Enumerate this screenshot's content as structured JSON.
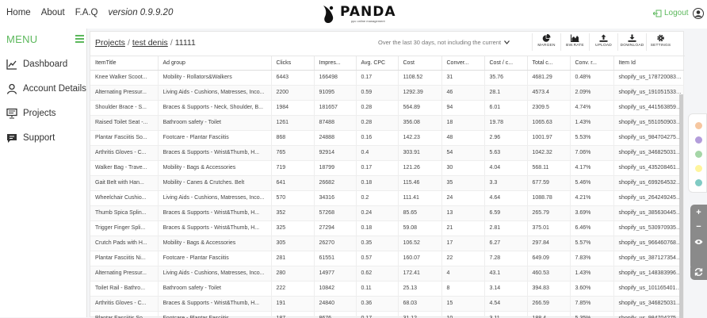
{
  "nav": {
    "home": "Home",
    "about": "About",
    "faq": "F.A.Q",
    "version": "version 0.9.9.20",
    "logout": "Logout"
  },
  "logo": {
    "word": "PANDA",
    "tagline": "ppc online management"
  },
  "sidebar": {
    "menu_label": "MENU",
    "items": [
      {
        "label": "Dashboard",
        "icon": "chart-line-icon"
      },
      {
        "label": "Account Details",
        "icon": "user-icon"
      },
      {
        "label": "Projects",
        "icon": "presentation-icon"
      },
      {
        "label": "Support",
        "icon": "chat-bubble-icon"
      }
    ]
  },
  "breadcrumb": {
    "projects": "Projects",
    "account": "test denis",
    "project_id": "11111"
  },
  "date_range": "Over the last 30 days, not including the current",
  "toolbar": [
    {
      "label": "MARGEN",
      "icon": "pie-chart-icon"
    },
    {
      "label": "BW.RATE",
      "icon": "area-chart-icon"
    },
    {
      "label": "UPLOAD",
      "icon": "upload-icon"
    },
    {
      "label": "DOWNLOAD",
      "icon": "download-icon"
    },
    {
      "label": "SETTINGS",
      "icon": "gear-icon"
    }
  ],
  "table": {
    "columns": [
      "ItemTitle",
      "Ad group",
      "Clicks",
      "Impres...",
      "Avg. CPC",
      "Cost",
      "Conver...",
      "Cost / c...",
      "Total c...",
      "Conv. r...",
      "Item Id"
    ],
    "rows": [
      [
        "Knee Walker Scoot...",
        "Mobility - Rollators&Walkers",
        "6443",
        "166498",
        "0.17",
        "1108.52",
        "31",
        "35.76",
        "4681.29",
        "0.48%",
        "shopify_us_1787200836_6"
      ],
      [
        "Alternating Pressur...",
        "Living Aids - Cushions, Matresses, Inco...",
        "2200",
        "91095",
        "0.59",
        "1292.39",
        "46",
        "28.1",
        "4573.4",
        "2.09%",
        "shopify_us_1910515332_66"
      ],
      [
        "Shoulder Brace - S...",
        "Braces & Supports - Neck, Shoulder, B...",
        "1984",
        "181657",
        "0.28",
        "564.89",
        "94",
        "6.01",
        "2309.5",
        "4.74%",
        "shopify_us_4415638596_14"
      ],
      [
        "Raised Toilet Seat -...",
        "Bathroom safety - Toilet",
        "1261",
        "87488",
        "0.28",
        "356.08",
        "18",
        "19.78",
        "1065.63",
        "1.43%",
        "shopify_us_551050903587"
      ],
      [
        "Plantar Fasciitis So...",
        "Footcare - Plantar Fasciitis",
        "868",
        "24888",
        "0.16",
        "142.23",
        "48",
        "2.96",
        "1001.97",
        "5.53%",
        "shopify_us_9847042756_34"
      ],
      [
        "Arthritis Gloves - C...",
        "Braces & Supports - Wrist&Thumb, H...",
        "765",
        "92914",
        "0.4",
        "303.91",
        "54",
        "5.63",
        "1042.32",
        "7.06%",
        "shopify_us_346825031684"
      ],
      [
        "Walker Bag - Trave...",
        "Mobility - Bags & Accessories",
        "719",
        "18799",
        "0.17",
        "121.26",
        "30",
        "4.04",
        "568.11",
        "4.17%",
        "shopify_us_4352084612_14"
      ],
      [
        "Gait Belt with Han...",
        "Mobility - Canes & Crutches. Belt",
        "641",
        "26682",
        "0.18",
        "115.46",
        "35",
        "3.3",
        "677.59",
        "5.46%",
        "shopify_us_69926453252_"
      ],
      [
        "Wheelchair Cushio...",
        "Living Aids - Cushions, Matresses, Inco...",
        "570",
        "34316",
        "0.2",
        "111.41",
        "24",
        "4.64",
        "1088.78",
        "4.21%",
        "shopify_us_264249245700"
      ],
      [
        "Thumb Spica Splin...",
        "Braces & Supports - Wrist&Thumb, H...",
        "352",
        "57268",
        "0.24",
        "85.65",
        "13",
        "6.59",
        "265.79",
        "3.69%",
        "shopify_us_3856304452_1"
      ],
      [
        "Trigger Finger Spli...",
        "Braces & Supports - Wrist&Thumb, H...",
        "325",
        "27294",
        "0.18",
        "59.08",
        "21",
        "2.81",
        "375.01",
        "6.46%",
        "shopify_us_530970935331"
      ],
      [
        "Crutch Pads with H...",
        "Mobility - Bags & Accessories",
        "305",
        "26270",
        "0.35",
        "106.52",
        "17",
        "6.27",
        "297.84",
        "5.57%",
        "shopify_us_9664607684_3"
      ],
      [
        "Plantar Fasciitis Ni...",
        "Footcare - Plantar Fasciitis",
        "281",
        "61551",
        "0.57",
        "160.07",
        "22",
        "7.28",
        "649.09",
        "7.83%",
        "shopify_us_3871273540_1"
      ],
      [
        "Alternating Pressur...",
        "Living Aids - Cushions, Matresses, Inco...",
        "280",
        "14977",
        "0.62",
        "172.41",
        "4",
        "43.1",
        "460.53",
        "1.43%",
        "shopify_us_148383996317"
      ],
      [
        "Toilet Rail - Bathro...",
        "Bathroom safety - Toilet",
        "222",
        "10842",
        "0.11",
        "25.13",
        "8",
        "3.14",
        "394.83",
        "3.60%",
        "shopify_us_10116540100_"
      ],
      [
        "Arthritis Gloves - C...",
        "Braces & Supports - Wrist&Thumb, H...",
        "191",
        "24840",
        "0.36",
        "68.03",
        "15",
        "4.54",
        "266.59",
        "7.85%",
        "shopify_us_346825031684"
      ],
      [
        "Plantar Fasciitis So...",
        "Footcare - Plantar Fasciitis",
        "187",
        "8676",
        "0.17",
        "31.12",
        "10",
        "3.11",
        "188.4",
        "5.35%",
        "shopify_us_9847042756_34"
      ]
    ]
  },
  "theme_dots": [
    "#f6c7a0",
    "#b39ddb",
    "#a5d6a7",
    "#fff59d",
    "#80cbc4"
  ],
  "colors": {
    "accent": "#5cb85c"
  }
}
